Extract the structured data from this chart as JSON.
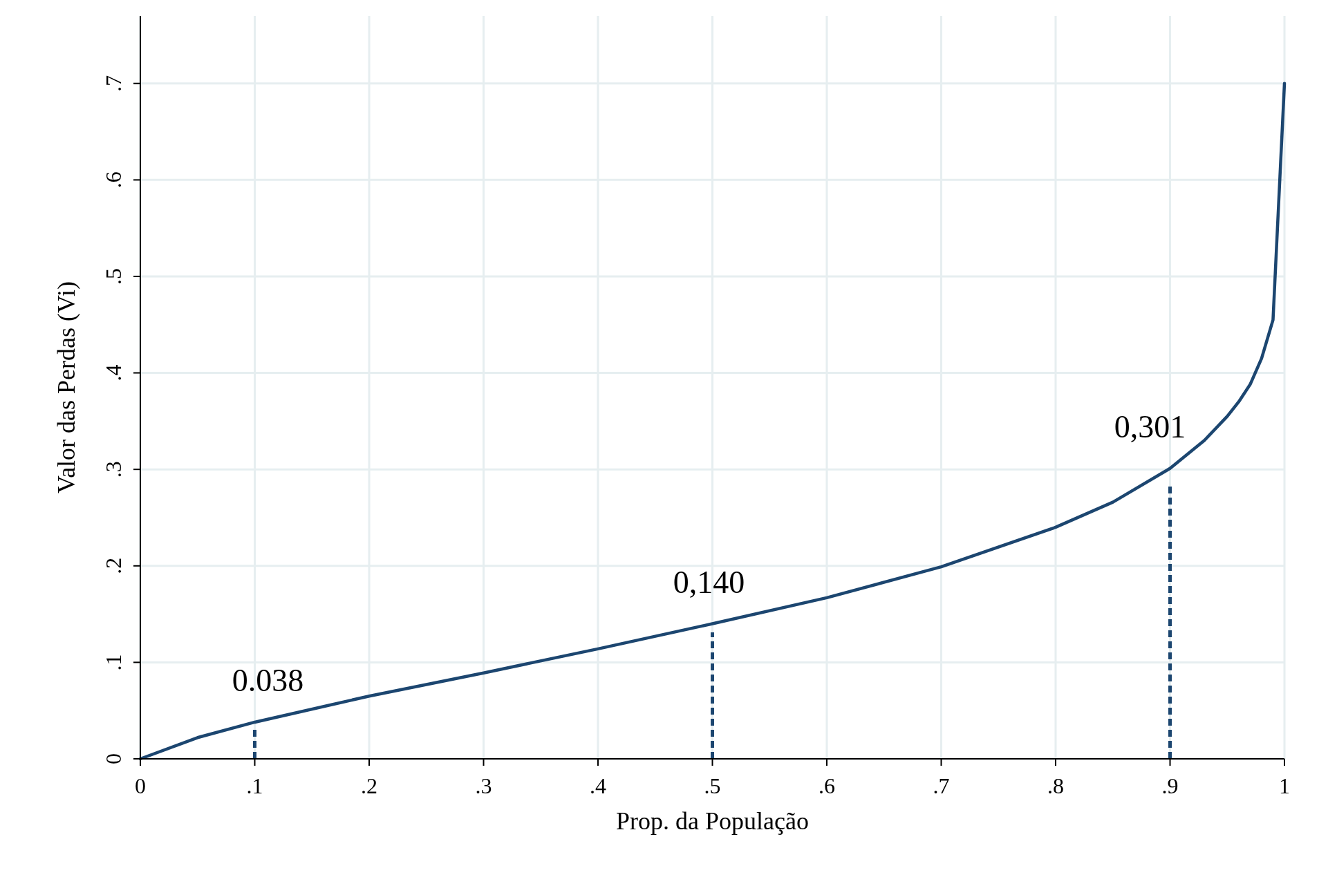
{
  "chart_data": {
    "type": "line",
    "xlabel": "Prop. da População",
    "ylabel": "Valor das Perdas (Vi)",
    "xlim": [
      0,
      1
    ],
    "ylim": [
      0,
      0.77
    ],
    "xticks": [
      0,
      {
        "value": 0.1,
        "label": ".1"
      },
      {
        "value": 0.2,
        "label": ".2"
      },
      {
        "value": 0.3,
        "label": ".3"
      },
      {
        "value": 0.4,
        "label": ".4"
      },
      {
        "value": 0.5,
        "label": ".5"
      },
      {
        "value": 0.6,
        "label": ".6"
      },
      {
        "value": 0.7,
        "label": ".7"
      },
      {
        "value": 0.8,
        "label": ".8"
      },
      {
        "value": 0.9,
        "label": ".9"
      },
      1
    ],
    "yticks": [
      0,
      {
        "value": 0.1,
        "label": ".1"
      },
      {
        "value": 0.2,
        "label": ".2"
      },
      {
        "value": 0.3,
        "label": ".3"
      },
      {
        "value": 0.4,
        "label": ".4"
      },
      {
        "value": 0.5,
        "label": ".5"
      },
      {
        "value": 0.6,
        "label": ".6"
      },
      {
        "value": 0.7,
        "label": ".7"
      }
    ],
    "grid": true,
    "series": [
      {
        "color": "#1c4670",
        "line_style": "solid",
        "x": [
          0,
          0.05,
          0.1,
          0.2,
          0.3,
          0.4,
          0.5,
          0.6,
          0.7,
          0.8,
          0.85,
          0.9,
          0.93,
          0.95,
          0.96,
          0.97,
          0.98,
          0.99,
          1
        ],
        "values": [
          0,
          0.022,
          0.038,
          0.065,
          0.089,
          0.114,
          0.14,
          0.167,
          0.199,
          0.24,
          0.266,
          0.301,
          0.33,
          0.355,
          0.37,
          0.388,
          0.415,
          0.455,
          0.7
        ]
      },
      {
        "color": "#1c4670",
        "line_style": "dashed",
        "x": [
          0.1,
          0.1
        ],
        "values": [
          0,
          0.033
        ]
      },
      {
        "color": "#1c4670",
        "line_style": "dashed",
        "x": [
          0.5,
          0.5
        ],
        "values": [
          0,
          0.131
        ]
      },
      {
        "color": "#1c4670",
        "line_style": "dashed",
        "x": [
          0.9,
          0.9
        ],
        "values": [
          0,
          0.285
        ]
      }
    ],
    "annotations": [
      {
        "text": "0.038",
        "x": 0.1,
        "y": 0.038
      },
      {
        "text": "0,140",
        "x": 0.5,
        "y": 0.14
      },
      {
        "text": "0,301",
        "x": 0.9,
        "y": 0.301
      }
    ]
  }
}
